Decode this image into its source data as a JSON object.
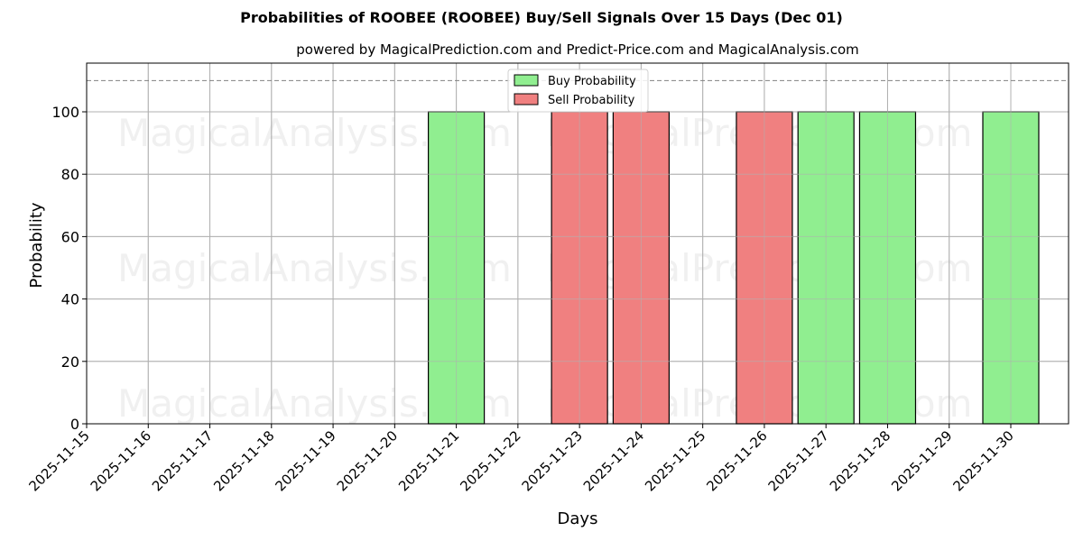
{
  "title": "Probabilities of ROOBEE (ROOBEE) Buy/Sell Signals Over 15 Days (Dec 01)",
  "subtitle": "powered by MagicalPrediction.com and Predict-Price.com and MagicalAnalysis.com",
  "watermarks": [
    "MagicalAnalysis.com",
    "MagicalPrediction.com"
  ],
  "colors": {
    "buy": "#90ee90",
    "sell": "#f08080",
    "grid": "#b0b0b0",
    "threshold": "#808080"
  },
  "chart_data": {
    "type": "bar",
    "title": "Probabilities of ROOBEE (ROOBEE) Buy/Sell Signals Over 15 Days (Dec 01)",
    "subtitle": "powered by MagicalPrediction.com and Predict-Price.com and MagicalAnalysis.com",
    "xlabel": "Days",
    "ylabel": "Probability",
    "ylim": [
      0,
      115
    ],
    "yticks": [
      0,
      20,
      40,
      60,
      80,
      100
    ],
    "grid": true,
    "legend_position": "upper center",
    "threshold_line": {
      "y": 110,
      "style": "dashed"
    },
    "categories": [
      "2025-11-15",
      "2025-11-16",
      "2025-11-17",
      "2025-11-18",
      "2025-11-19",
      "2025-11-20",
      "2025-11-21",
      "2025-11-22",
      "2025-11-23",
      "2025-11-24",
      "2025-11-25",
      "2025-11-26",
      "2025-11-27",
      "2025-11-28",
      "2025-11-29",
      "2025-11-30"
    ],
    "series": [
      {
        "name": "Buy Probability",
        "color": "#90ee90",
        "values": [
          0,
          0,
          0,
          0,
          0,
          0,
          100,
          0,
          0,
          0,
          0,
          0,
          100,
          100,
          0,
          100
        ]
      },
      {
        "name": "Sell Probability",
        "color": "#f08080",
        "values": [
          0,
          0,
          0,
          0,
          0,
          0,
          0,
          0,
          100,
          100,
          0,
          100,
          0,
          0,
          0,
          0
        ]
      }
    ]
  },
  "legend": {
    "buy_label": "Buy Probability",
    "sell_label": "Sell Probability"
  }
}
